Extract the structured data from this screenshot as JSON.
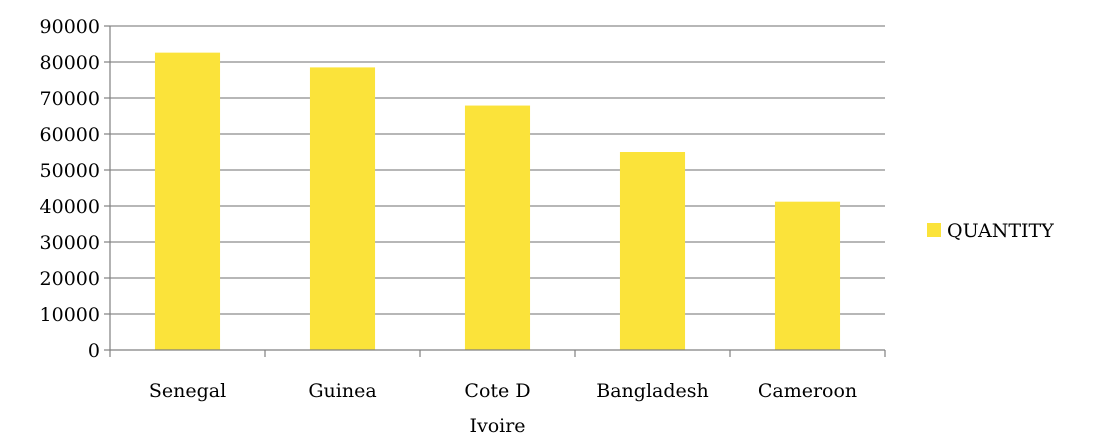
{
  "chart_data": {
    "type": "bar",
    "categories": [
      "Senegal",
      "Guinea",
      "Cote D Ivoire",
      "Bangladesh",
      "Cameroon"
    ],
    "category_label_lines": [
      [
        "Senegal"
      ],
      [
        "Guinea"
      ],
      [
        "Cote D",
        "Ivoire"
      ],
      [
        "Bangladesh"
      ],
      [
        "Cameroon"
      ]
    ],
    "series": [
      {
        "name": "QUANTITY",
        "values": [
          82600,
          78500,
          67900,
          55000,
          41200
        ],
        "color": "#fbe33a"
      }
    ],
    "yticks": [
      "0",
      "10000",
      "20000",
      "30000",
      "40000",
      "50000",
      "60000",
      "70000",
      "80000",
      "90000"
    ],
    "ylim": [
      0,
      90000
    ],
    "grid": true,
    "legend": "right",
    "gridline_color": "#8c8c8c",
    "axis_color": "#808080"
  }
}
